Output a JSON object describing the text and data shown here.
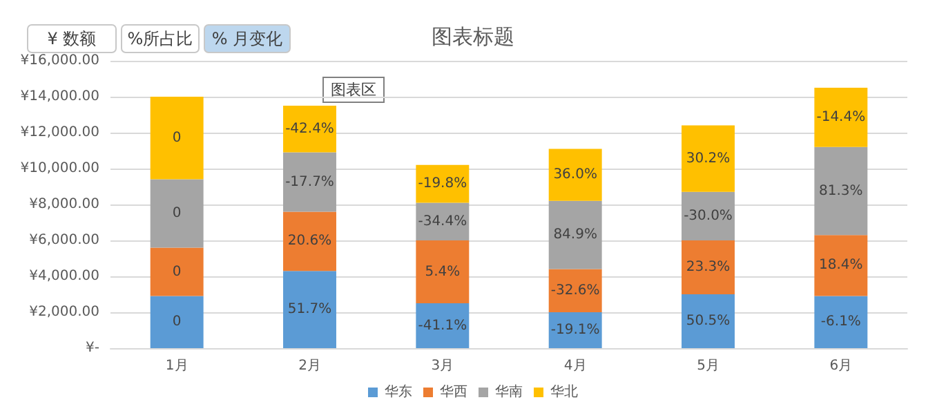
{
  "chart_data": {
    "type": "bar",
    "title": "图表标题",
    "stacked": true,
    "categories": [
      "1月",
      "2月",
      "3月",
      "4月",
      "5月",
      "6月"
    ],
    "series": [
      {
        "name": "华东",
        "color": "#5b9bd5",
        "values": [
          2900,
          4300,
          2500,
          2000,
          3000,
          2900
        ]
      },
      {
        "name": "华西",
        "color": "#ed7d31",
        "values": [
          2700,
          3300,
          3500,
          2400,
          3000,
          3400
        ]
      },
      {
        "name": "华南",
        "color": "#a5a5a5",
        "values": [
          3800,
          3300,
          2100,
          3800,
          2700,
          4900
        ]
      },
      {
        "name": "华北",
        "color": "#ffc000",
        "values": [
          4600,
          2600,
          2100,
          2900,
          3700,
          3300
        ]
      }
    ],
    "ylim": [
      0,
      16000
    ],
    "yticks": [
      {
        "value": 0,
        "label": "¥-"
      },
      {
        "value": 2000,
        "label": "¥2,000.00"
      },
      {
        "value": 4000,
        "label": "¥4,000.00"
      },
      {
        "value": 6000,
        "label": "¥6,000.00"
      },
      {
        "value": 8000,
        "label": "¥8,000.00"
      },
      {
        "value": 10000,
        "label": "¥10,000.00"
      },
      {
        "value": 12000,
        "label": "¥12,000.00"
      },
      {
        "value": 14000,
        "label": "¥14,000.00"
      },
      {
        "value": 16000,
        "label": "¥16,000.00"
      }
    ],
    "annotations": [
      "¥ 数额",
      "%所占比",
      "% 月变化",
      "图表区",
      "0",
      "51.7%",
      "-41.1%",
      "-19.1%",
      "50.5%",
      "-6.1%",
      "0",
      "20.6%",
      "5.4%",
      "-32.6%",
      "23.3%",
      "18.4%",
      "0",
      "-17.7%",
      "-34.4%",
      "84.9%",
      "-30.0%",
      "81.3%",
      "0",
      "-42.4%",
      "-19.8%",
      "36.0%",
      "30.2%",
      "-14.4%"
    ],
    "grid": "y",
    "legend": "bottom"
  }
}
